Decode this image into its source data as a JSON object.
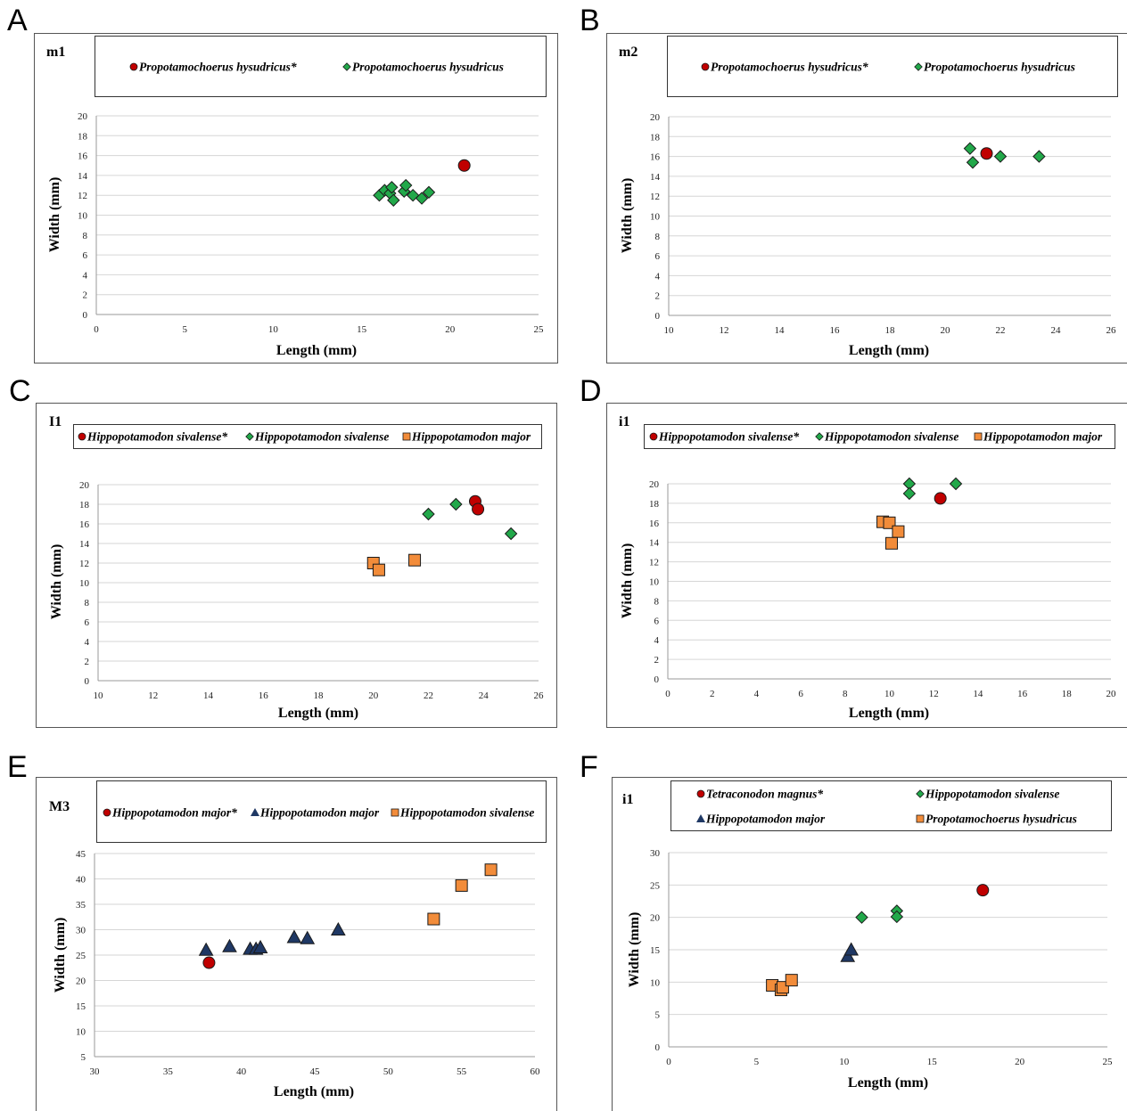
{
  "chart_data": [
    {
      "letter": "A",
      "label": "m1",
      "type": "scatter",
      "xlabel": "Length (mm)",
      "ylabel": "Width (mm)",
      "xlim": [
        0,
        25
      ],
      "ylim": [
        0,
        20
      ],
      "xticks": [
        0,
        5,
        10,
        15,
        20,
        25
      ],
      "yticks": [
        0,
        2,
        4,
        6,
        8,
        10,
        12,
        14,
        16,
        18,
        20
      ],
      "grid": "horizontal",
      "series": [
        {
          "name": "Propotamochoerus hysudricus*",
          "marker": "circle",
          "color": "#c00000",
          "points": [
            [
              20.8,
              15.0
            ]
          ]
        },
        {
          "name": "Propotamochoerus hysudricus",
          "marker": "diamond",
          "color": "#22a84a",
          "points": [
            [
              16.0,
              12.0
            ],
            [
              16.3,
              12.5
            ],
            [
              16.6,
              12.2
            ],
            [
              16.7,
              12.8
            ],
            [
              16.8,
              11.5
            ],
            [
              17.4,
              12.4
            ],
            [
              17.5,
              13.0
            ],
            [
              17.9,
              12.0
            ],
            [
              18.4,
              11.7
            ],
            [
              18.8,
              12.3
            ]
          ]
        }
      ]
    },
    {
      "letter": "B",
      "label": "m2",
      "type": "scatter",
      "xlabel": "Length (mm)",
      "ylabel": "Width (mm)",
      "xlim": [
        10,
        26
      ],
      "ylim": [
        0,
        20
      ],
      "xticks": [
        10,
        12,
        14,
        16,
        18,
        20,
        22,
        24,
        26
      ],
      "yticks": [
        0,
        2,
        4,
        6,
        8,
        10,
        12,
        14,
        16,
        18,
        20
      ],
      "grid": "horizontal",
      "series": [
        {
          "name": "Propotamochoerus hysudricus*",
          "marker": "circle",
          "color": "#c00000",
          "points": [
            [
              21.5,
              16.3
            ]
          ]
        },
        {
          "name": "Propotamochoerus hysudricus",
          "marker": "diamond",
          "color": "#22a84a",
          "points": [
            [
              20.9,
              16.8
            ],
            [
              21.0,
              15.4
            ],
            [
              22.0,
              16.0
            ],
            [
              23.4,
              16.0
            ]
          ]
        }
      ]
    },
    {
      "letter": "C",
      "label": "I1",
      "type": "scatter",
      "xlabel": "Length (mm)",
      "ylabel": "Width (mm)",
      "xlim": [
        10,
        26
      ],
      "ylim": [
        0,
        20
      ],
      "xticks": [
        10,
        12,
        14,
        16,
        18,
        20,
        22,
        24,
        26
      ],
      "yticks": [
        0,
        2,
        4,
        6,
        8,
        10,
        12,
        14,
        16,
        18,
        20
      ],
      "grid": "horizontal",
      "series": [
        {
          "name": "Hippopotamodon sivalense*",
          "marker": "circle",
          "color": "#c00000",
          "points": [
            [
              23.7,
              18.3
            ],
            [
              23.8,
              17.5
            ]
          ]
        },
        {
          "name": "Hippopotamodon sivalense",
          "marker": "diamond",
          "color": "#22a84a",
          "points": [
            [
              22.0,
              17.0
            ],
            [
              23.0,
              18.0
            ],
            [
              25.0,
              15.0
            ]
          ]
        },
        {
          "name": "Hippopotamodon major",
          "marker": "square",
          "color": "#f28c3a",
          "points": [
            [
              20.0,
              12.0
            ],
            [
              20.2,
              11.3
            ],
            [
              21.5,
              12.3
            ]
          ]
        }
      ]
    },
    {
      "letter": "D",
      "label": "i1",
      "type": "scatter",
      "xlabel": "Length (mm)",
      "ylabel": "Width (mm)",
      "xlim": [
        0,
        20
      ],
      "ylim": [
        0,
        20
      ],
      "xticks": [
        0,
        2,
        4,
        6,
        8,
        10,
        12,
        14,
        16,
        18,
        20
      ],
      "yticks": [
        0,
        2,
        4,
        6,
        8,
        10,
        12,
        14,
        16,
        18,
        20
      ],
      "grid": "horizontal",
      "series": [
        {
          "name": "Hippopotamodon sivalense*",
          "marker": "circle",
          "color": "#c00000",
          "points": [
            [
              12.3,
              18.5
            ]
          ]
        },
        {
          "name": "Hippopotamodon sivalense",
          "marker": "diamond",
          "color": "#22a84a",
          "points": [
            [
              10.9,
              20.0
            ],
            [
              10.9,
              19.0
            ],
            [
              13.0,
              20.0
            ]
          ]
        },
        {
          "name": "Hippopotamodon major",
          "marker": "square",
          "color": "#f28c3a",
          "points": [
            [
              9.7,
              16.1
            ],
            [
              10.0,
              16.0
            ],
            [
              10.4,
              15.1
            ],
            [
              10.1,
              13.9
            ]
          ]
        }
      ]
    },
    {
      "letter": "E",
      "label": "M3",
      "type": "scatter",
      "xlabel": "Length (mm)",
      "ylabel": "Width (mm)",
      "xlim": [
        30,
        60
      ],
      "ylim": [
        5,
        45
      ],
      "xticks": [
        30,
        35,
        40,
        45,
        50,
        55,
        60
      ],
      "yticks": [
        5,
        10,
        15,
        20,
        25,
        30,
        35,
        40,
        45
      ],
      "grid": "horizontal",
      "series": [
        {
          "name": "Hippopotamodon major*",
          "marker": "circle",
          "color": "#c00000",
          "points": [
            [
              37.8,
              23.5
            ]
          ]
        },
        {
          "name": "Hippopotamodon major",
          "marker": "triangle",
          "color": "#1f3864",
          "points": [
            [
              37.6,
              26.0
            ],
            [
              39.2,
              26.7
            ],
            [
              40.6,
              26.2
            ],
            [
              41.0,
              26.2
            ],
            [
              41.3,
              26.5
            ],
            [
              43.6,
              28.5
            ],
            [
              44.5,
              28.3
            ],
            [
              46.6,
              30.0
            ]
          ]
        },
        {
          "name": "Hippopotamodon sivalense",
          "marker": "square",
          "color": "#f28c3a",
          "points": [
            [
              53.1,
              32.1
            ],
            [
              55.0,
              38.7
            ],
            [
              57.0,
              41.8
            ]
          ]
        }
      ]
    },
    {
      "letter": "F",
      "label": "i1",
      "type": "scatter",
      "xlabel": "Length (mm)",
      "ylabel": "Width (mm)",
      "xlim": [
        0,
        25
      ],
      "ylim": [
        0,
        30
      ],
      "xticks": [
        0,
        5,
        10,
        15,
        20,
        25
      ],
      "yticks": [
        0,
        5,
        10,
        15,
        20,
        25,
        30
      ],
      "grid": "horizontal",
      "series": [
        {
          "name": "Tetraconodon magnus*",
          "marker": "circle",
          "color": "#c00000",
          "points": [
            [
              17.9,
              24.2
            ]
          ]
        },
        {
          "name": "Hippopotamodon sivalense",
          "marker": "diamond",
          "color": "#22a84a",
          "points": [
            [
              11.0,
              20.0
            ],
            [
              13.0,
              21.0
            ],
            [
              13.0,
              20.1
            ]
          ]
        },
        {
          "name": "Hippopotamodon major",
          "marker": "triangle",
          "color": "#1f3864",
          "points": [
            [
              10.2,
              14.0
            ],
            [
              10.4,
              15.0
            ]
          ]
        },
        {
          "name": "Propotamochoerus hysudricus",
          "marker": "square",
          "color": "#f28c3a",
          "points": [
            [
              5.9,
              9.5
            ],
            [
              6.4,
              8.8
            ],
            [
              6.5,
              9.2
            ],
            [
              7.0,
              10.3
            ]
          ]
        }
      ]
    }
  ]
}
